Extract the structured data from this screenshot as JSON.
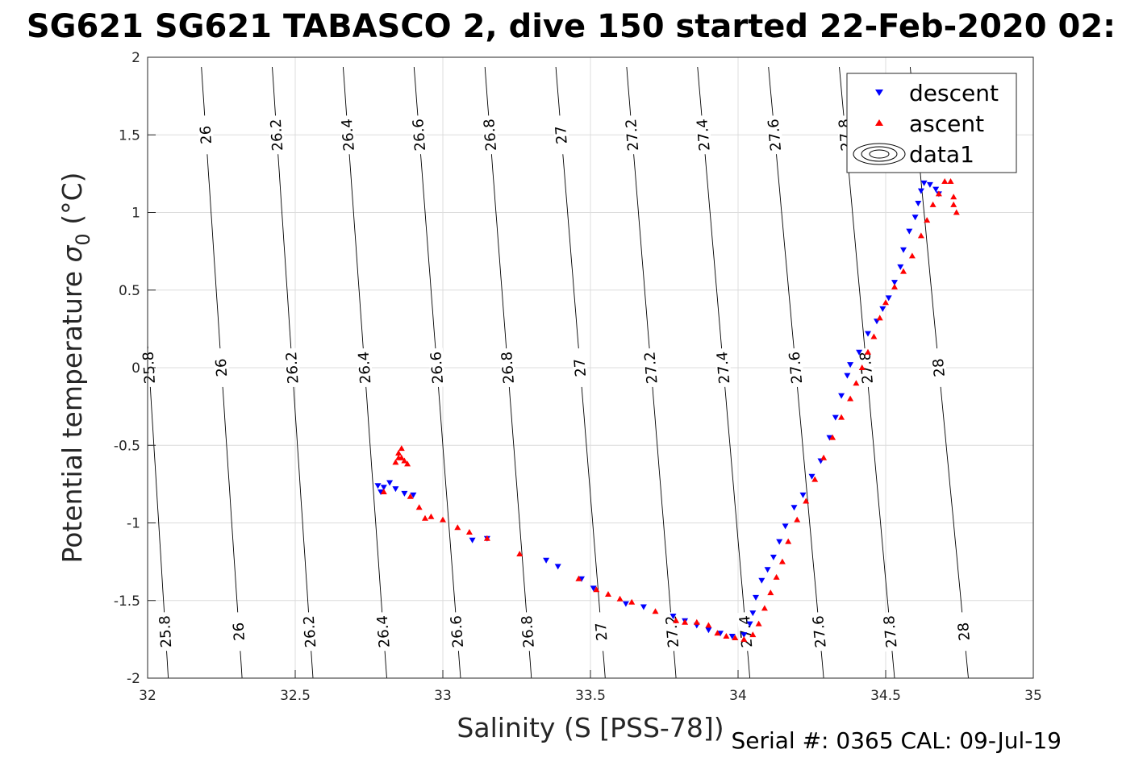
{
  "chart_data": {
    "type": "scatter",
    "title": "SG621 SG621 TABASCO 2, dive 150 started 22-Feb-2020 02:",
    "xlabel": "Salinity (S [PSS-78])",
    "ylabel": "Potential temperature σ0 (°C)",
    "ylabel_main": "Potential temperature ",
    "ylabel_sym": "σ",
    "ylabel_sub": "0",
    "ylabel_unit": " (°C)",
    "xlim": [
      32,
      35
    ],
    "ylim": [
      -2,
      2
    ],
    "xticks": [
      32,
      32.5,
      33,
      33.5,
      34,
      34.5,
      35
    ],
    "xtick_labels": [
      "32",
      "32.5",
      "33",
      "33.5",
      "34",
      "34.5",
      "35"
    ],
    "yticks": [
      -2,
      -1.5,
      -1,
      -0.5,
      0,
      0.5,
      1,
      1.5,
      2
    ],
    "ytick_labels": [
      "-2",
      "-1.5",
      "-1",
      "-0.5",
      "0",
      "0.5",
      "1",
      "1.5",
      "2"
    ],
    "grid": true,
    "legend_position": "top-right",
    "density_contours": {
      "levels": [
        25.8,
        26,
        26.2,
        26.4,
        26.6,
        26.8,
        27,
        27.2,
        27.4,
        27.6,
        27.8,
        28
      ],
      "labels": [
        "25.8",
        "26",
        "26.2",
        "26.4",
        "26.6",
        "26.8",
        "27",
        "27.2",
        "27.4",
        "27.6",
        "27.8",
        "28"
      ],
      "salinity_at_t_minus2": [
        32.07,
        32.32,
        32.56,
        32.81,
        33.06,
        33.3,
        33.55,
        33.79,
        34.04,
        34.29,
        34.53,
        34.78
      ],
      "salinity_at_t_2": [
        31.94,
        32.18,
        32.42,
        32.66,
        32.9,
        33.14,
        33.38,
        33.62,
        33.86,
        34.1,
        34.34,
        34.58
      ],
      "salinity_at_t_2_5": [
        31.75,
        31.99,
        32.23,
        32.47,
        32.71,
        32.95,
        33.19,
        33.43,
        33.67,
        33.91,
        34.15,
        34.39
      ],
      "label_temps": [
        1.5,
        0,
        -1.7
      ]
    },
    "series": [
      {
        "name": "descent",
        "color": "#0000ff",
        "marker": "triangle-down",
        "points": [
          [
            32.79,
            -0.8
          ],
          [
            32.78,
            -0.76
          ],
          [
            32.8,
            -0.77
          ],
          [
            32.82,
            -0.74
          ],
          [
            32.84,
            -0.78
          ],
          [
            32.87,
            -0.81
          ],
          [
            32.9,
            -0.82
          ],
          [
            33.1,
            -1.11
          ],
          [
            33.15,
            -1.1
          ],
          [
            33.35,
            -1.24
          ],
          [
            33.39,
            -1.28
          ],
          [
            33.47,
            -1.36
          ],
          [
            33.51,
            -1.42
          ],
          [
            33.62,
            -1.52
          ],
          [
            33.68,
            -1.54
          ],
          [
            33.78,
            -1.6
          ],
          [
            33.82,
            -1.63
          ],
          [
            33.86,
            -1.66
          ],
          [
            33.9,
            -1.69
          ],
          [
            33.94,
            -1.71
          ],
          [
            33.98,
            -1.73
          ],
          [
            34.02,
            -1.72
          ],
          [
            34.04,
            -1.65
          ],
          [
            34.05,
            -1.58
          ],
          [
            34.06,
            -1.48
          ],
          [
            34.08,
            -1.37
          ],
          [
            34.1,
            -1.3
          ],
          [
            34.12,
            -1.22
          ],
          [
            34.14,
            -1.12
          ],
          [
            34.16,
            -1.02
          ],
          [
            34.19,
            -0.9
          ],
          [
            34.22,
            -0.82
          ],
          [
            34.25,
            -0.7
          ],
          [
            34.28,
            -0.6
          ],
          [
            34.31,
            -0.45
          ],
          [
            34.33,
            -0.32
          ],
          [
            34.35,
            -0.18
          ],
          [
            34.37,
            -0.05
          ],
          [
            34.38,
            0.02
          ],
          [
            34.41,
            0.1
          ],
          [
            34.44,
            0.22
          ],
          [
            34.47,
            0.3
          ],
          [
            34.49,
            0.38
          ],
          [
            34.51,
            0.45
          ],
          [
            34.53,
            0.55
          ],
          [
            34.55,
            0.65
          ],
          [
            34.56,
            0.76
          ],
          [
            34.58,
            0.88
          ],
          [
            34.6,
            0.97
          ],
          [
            34.61,
            1.06
          ],
          [
            34.62,
            1.14
          ],
          [
            34.63,
            1.19
          ],
          [
            34.65,
            1.18
          ],
          [
            34.67,
            1.15
          ],
          [
            34.68,
            1.12
          ]
        ]
      },
      {
        "name": "ascent",
        "color": "#ff0000",
        "marker": "triangle-up",
        "points": [
          [
            32.84,
            -0.61
          ],
          [
            32.85,
            -0.58
          ],
          [
            32.85,
            -0.55
          ],
          [
            32.86,
            -0.52
          ],
          [
            32.86,
            -0.58
          ],
          [
            32.87,
            -0.6
          ],
          [
            32.88,
            -0.62
          ],
          [
            32.8,
            -0.8
          ],
          [
            32.89,
            -0.83
          ],
          [
            32.92,
            -0.9
          ],
          [
            32.94,
            -0.97
          ],
          [
            32.96,
            -0.96
          ],
          [
            33.0,
            -0.98
          ],
          [
            33.05,
            -1.03
          ],
          [
            33.09,
            -1.06
          ],
          [
            33.15,
            -1.1
          ],
          [
            33.26,
            -1.2
          ],
          [
            33.46,
            -1.36
          ],
          [
            33.52,
            -1.43
          ],
          [
            33.56,
            -1.46
          ],
          [
            33.6,
            -1.49
          ],
          [
            33.64,
            -1.51
          ],
          [
            33.72,
            -1.57
          ],
          [
            33.79,
            -1.63
          ],
          [
            33.82,
            -1.64
          ],
          [
            33.86,
            -1.64
          ],
          [
            33.9,
            -1.66
          ],
          [
            33.93,
            -1.71
          ],
          [
            33.96,
            -1.73
          ],
          [
            33.99,
            -1.74
          ],
          [
            34.02,
            -1.75
          ],
          [
            34.05,
            -1.72
          ],
          [
            34.07,
            -1.65
          ],
          [
            34.09,
            -1.55
          ],
          [
            34.11,
            -1.45
          ],
          [
            34.13,
            -1.35
          ],
          [
            34.15,
            -1.25
          ],
          [
            34.17,
            -1.12
          ],
          [
            34.2,
            -0.98
          ],
          [
            34.23,
            -0.86
          ],
          [
            34.26,
            -0.72
          ],
          [
            34.29,
            -0.58
          ],
          [
            34.32,
            -0.45
          ],
          [
            34.35,
            -0.32
          ],
          [
            34.38,
            -0.2
          ],
          [
            34.4,
            -0.1
          ],
          [
            34.42,
            0.0
          ],
          [
            34.44,
            0.1
          ],
          [
            34.46,
            0.2
          ],
          [
            34.48,
            0.32
          ],
          [
            34.5,
            0.42
          ],
          [
            34.53,
            0.52
          ],
          [
            34.56,
            0.62
          ],
          [
            34.59,
            0.72
          ],
          [
            34.62,
            0.85
          ],
          [
            34.64,
            0.95
          ],
          [
            34.66,
            1.05
          ],
          [
            34.68,
            1.12
          ],
          [
            34.7,
            1.2
          ],
          [
            34.71,
            1.27
          ],
          [
            34.72,
            1.2
          ],
          [
            34.73,
            1.1
          ],
          [
            34.74,
            1.0
          ],
          [
            34.73,
            1.05
          ]
        ]
      }
    ],
    "legend": [
      "descent",
      "ascent",
      "data1"
    ],
    "footer": "Serial #: 0365  CAL: 09-Jul-19"
  }
}
